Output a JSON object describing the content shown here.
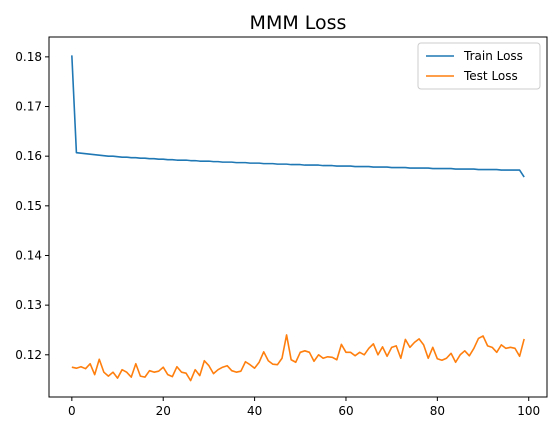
{
  "chart_data": {
    "type": "line",
    "title": "MMM Loss",
    "xlabel": "",
    "ylabel": "",
    "xlim": [
      -5,
      104
    ],
    "ylim": [
      0.1115,
      0.184
    ],
    "x_ticks": [
      0,
      20,
      40,
      60,
      80,
      100
    ],
    "y_ticks": [
      0.12,
      0.13,
      0.14,
      0.15,
      0.16,
      0.17,
      0.18
    ],
    "grid": false,
    "legend_position": "top-right",
    "series": [
      {
        "name": "Train Loss",
        "color": "#1f77b4",
        "values": [
          0.1803,
          0.1607,
          0.1606,
          0.1605,
          0.1604,
          0.1603,
          0.1602,
          0.1601,
          0.16,
          0.16,
          0.1599,
          0.1598,
          0.1598,
          0.1597,
          0.1597,
          0.1596,
          0.1596,
          0.1595,
          0.1595,
          0.1594,
          0.1594,
          0.1593,
          0.1593,
          0.1592,
          0.1592,
          0.1592,
          0.1591,
          0.1591,
          0.159,
          0.159,
          0.159,
          0.1589,
          0.1589,
          0.1588,
          0.1588,
          0.1588,
          0.1587,
          0.1587,
          0.1587,
          0.1586,
          0.1586,
          0.1586,
          0.1585,
          0.1585,
          0.1585,
          0.1584,
          0.1584,
          0.1584,
          0.1583,
          0.1583,
          0.1583,
          0.1582,
          0.1582,
          0.1582,
          0.1582,
          0.1581,
          0.1581,
          0.1581,
          0.158,
          0.158,
          0.158,
          0.158,
          0.1579,
          0.1579,
          0.1579,
          0.1579,
          0.1578,
          0.1578,
          0.1578,
          0.1578,
          0.1577,
          0.1577,
          0.1577,
          0.1577,
          0.1576,
          0.1576,
          0.1576,
          0.1576,
          0.1576,
          0.1575,
          0.1575,
          0.1575,
          0.1575,
          0.1575,
          0.1574,
          0.1574,
          0.1574,
          0.1574,
          0.1574,
          0.1573,
          0.1573,
          0.1573,
          0.1573,
          0.1573,
          0.1572,
          0.1572,
          0.1572,
          0.1572,
          0.1572,
          0.1558
        ]
      },
      {
        "name": "Test Loss",
        "color": "#ff7f0e",
        "values": [
          0.1175,
          0.1173,
          0.1176,
          0.1172,
          0.1182,
          0.116,
          0.1191,
          0.1165,
          0.1157,
          0.1165,
          0.1153,
          0.117,
          0.1165,
          0.1155,
          0.1182,
          0.1157,
          0.1155,
          0.1168,
          0.1165,
          0.1167,
          0.1175,
          0.116,
          0.1156,
          0.1176,
          0.1165,
          0.1163,
          0.1148,
          0.117,
          0.1158,
          0.1188,
          0.1178,
          0.1162,
          0.117,
          0.1175,
          0.1178,
          0.1168,
          0.1165,
          0.1167,
          0.1186,
          0.118,
          0.1173,
          0.1185,
          0.1206,
          0.1188,
          0.1181,
          0.118,
          0.1193,
          0.124,
          0.119,
          0.1185,
          0.1205,
          0.1208,
          0.1205,
          0.1187,
          0.12,
          0.1193,
          0.1196,
          0.1195,
          0.119,
          0.1221,
          0.1205,
          0.1205,
          0.1198,
          0.1205,
          0.12,
          0.1213,
          0.1222,
          0.12,
          0.1216,
          0.1197,
          0.1215,
          0.1218,
          0.1193,
          0.1231,
          0.1215,
          0.1225,
          0.1232,
          0.122,
          0.1193,
          0.1215,
          0.1192,
          0.1189,
          0.1193,
          0.1203,
          0.1185,
          0.12,
          0.1208,
          0.1198,
          0.1213,
          0.1233,
          0.1238,
          0.1218,
          0.1215,
          0.1205,
          0.122,
          0.1213,
          0.1215,
          0.1213,
          0.1197,
          0.1232
        ]
      }
    ]
  }
}
